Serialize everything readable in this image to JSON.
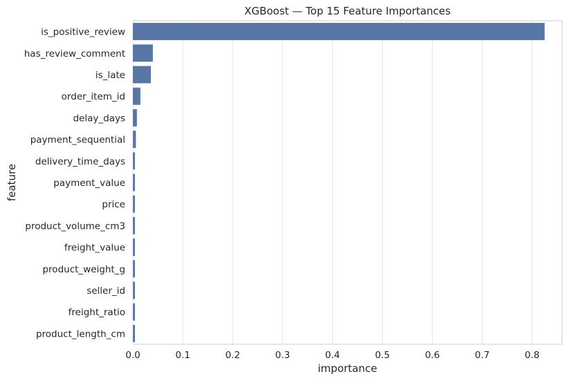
{
  "chart_data": {
    "type": "bar",
    "orientation": "horizontal",
    "title": "XGBoost — Top 15 Feature Importances",
    "xlabel": "importance",
    "ylabel": "feature",
    "xlim": [
      0,
      0.86
    ],
    "xticks": [
      "0.0",
      "0.1",
      "0.2",
      "0.3",
      "0.4",
      "0.5",
      "0.6",
      "0.7",
      "0.8"
    ],
    "grid": "vertical",
    "bar_color": "#5975a4",
    "categories": [
      "is_positive_review",
      "has_review_comment",
      "is_late",
      "order_item_id",
      "delay_days",
      "payment_sequential",
      "delivery_time_days",
      "payment_value",
      "price",
      "product_volume_cm3",
      "freight_value",
      "product_weight_g",
      "seller_id",
      "freight_ratio",
      "product_length_cm"
    ],
    "values": [
      0.825,
      0.04,
      0.036,
      0.015,
      0.008,
      0.006,
      0.004,
      0.004,
      0.004,
      0.004,
      0.004,
      0.004,
      0.004,
      0.004,
      0.004
    ]
  }
}
